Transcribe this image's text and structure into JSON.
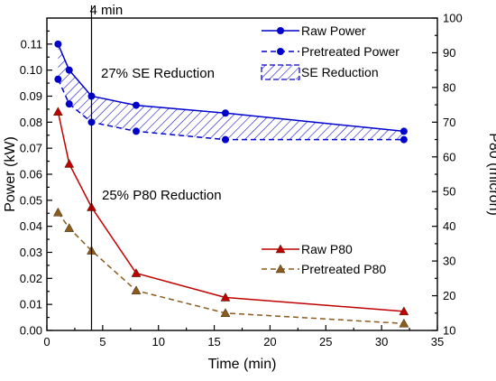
{
  "chart_data": {
    "type": "line",
    "xlabel": "Time (min)",
    "ylabel_left": "Power (kW)",
    "ylabel_right": "P80 (micron)",
    "xlim": [
      0,
      35
    ],
    "ylim_left": [
      0.0,
      0.12
    ],
    "ylim_right": [
      10,
      100
    ],
    "x_ticks": [
      0,
      5,
      10,
      15,
      20,
      25,
      30,
      35
    ],
    "y_left_ticks": [
      "0.00",
      "0.01",
      "0.02",
      "0.03",
      "0.04",
      "0.05",
      "0.06",
      "0.07",
      "0.08",
      "0.09",
      "0.10",
      "0.11"
    ],
    "y_right_ticks": [
      10,
      20,
      30,
      40,
      50,
      60,
      70,
      80,
      90,
      100
    ],
    "x": [
      1,
      2,
      4,
      8,
      16,
      32
    ],
    "series": [
      {
        "name": "Raw Power",
        "axis": "left",
        "values": [
          0.11,
          0.1,
          0.09,
          0.0865,
          0.0835,
          0.0765
        ],
        "color": "#0000cc",
        "dash": false,
        "marker": "circle"
      },
      {
        "name": "Pretreated Power",
        "axis": "left",
        "values": [
          0.0965,
          0.087,
          0.08,
          0.0765,
          0.0733,
          0.0733
        ],
        "color": "#0000cc",
        "dash": true,
        "marker": "circle"
      },
      {
        "name": "Raw P80",
        "axis": "right",
        "values": [
          73,
          58,
          45.5,
          26.5,
          19.5,
          15.5
        ],
        "color": "#c00000",
        "dash": false,
        "marker": "triangle"
      },
      {
        "name": "Pretreated P80",
        "axis": "right",
        "values": [
          44,
          39.5,
          33,
          21.5,
          15,
          12
        ],
        "color": "#8b5a1c",
        "dash": true,
        "marker": "triangle"
      }
    ],
    "fill_between": {
      "name": "SE Reduction",
      "upper": "Raw Power",
      "lower": "Pretreated Power",
      "pattern": "hatch",
      "color": "#0000cc"
    },
    "vline": {
      "x": 4,
      "label": "4 min"
    },
    "annotations": [
      "27% SE Reduction",
      "25% P80 Reduction"
    ],
    "legend_upper": [
      "Raw Power",
      "Pretreated Power",
      "SE Reduction"
    ],
    "legend_lower": [
      "Raw P80",
      "Pretreated P80"
    ]
  }
}
